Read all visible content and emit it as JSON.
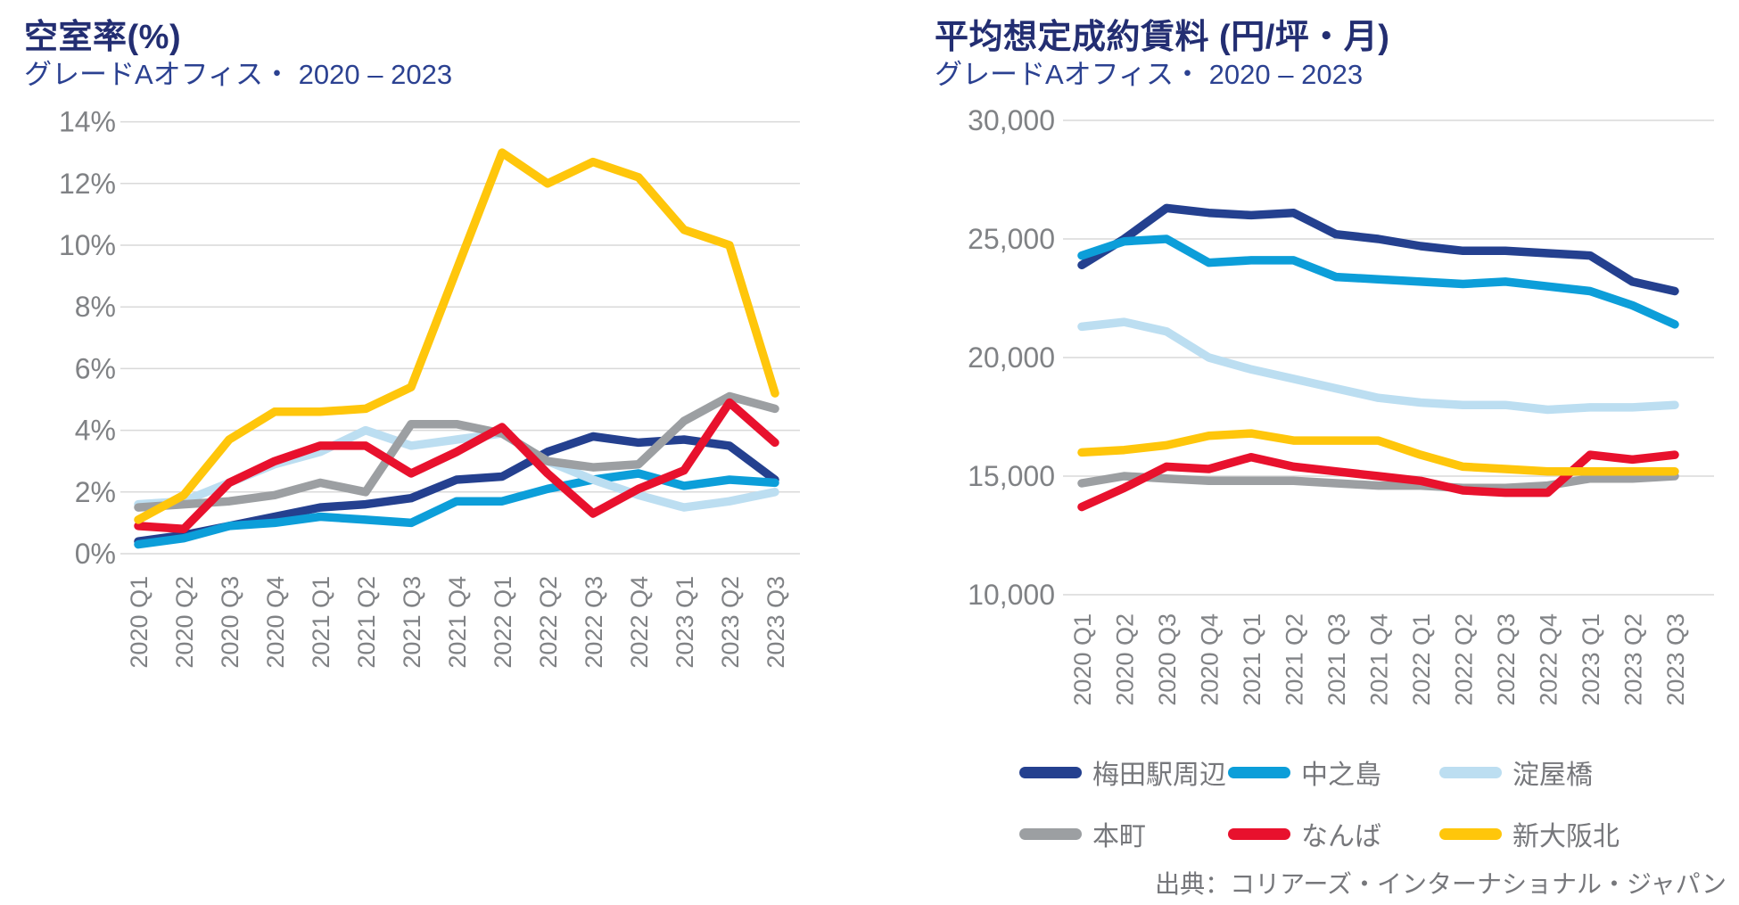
{
  "charts": {
    "vacancy": {
      "title": "空室率(%)",
      "subtitle": "グレードAオフィス・ 2020 – 2023"
    },
    "rent": {
      "title": "平均想定成約賃料 (円/坪・月)",
      "subtitle": "グレードAオフィス・ 2020 – 2023"
    }
  },
  "source": "出典：コリアーズ・インターナショナル・ジャパン",
  "colors": {
    "umeda_navy": "#24408F",
    "nakanoshima_cyan": "#0C9ED9",
    "yodoyabashi_lightblue": "#BCDEF1",
    "honmachi_gray": "#9C9FA2",
    "namba_red": "#E8112D",
    "shinosaka_yellow": "#FFC60B",
    "gridline": "#D9D9D9",
    "axis_text": "#808285",
    "title_navy": "#232E72"
  },
  "legend": {
    "items": [
      {
        "label": "梅田駅周辺",
        "color": "#24408F"
      },
      {
        "label": "中之島",
        "color": "#0C9ED9"
      },
      {
        "label": "淀屋橋",
        "color": "#BCDEF1"
      },
      {
        "label": "本町",
        "color": "#9C9FA2"
      },
      {
        "label": "なんば",
        "color": "#E8112D"
      },
      {
        "label": "新大阪北",
        "color": "#FFC60B"
      }
    ]
  },
  "chart_data": [
    {
      "type": "line",
      "title": "空室率(%)",
      "subtitle": "グレードAオフィス・ 2020 – 2023",
      "ylabel": "空室率 (%)",
      "ylim": [
        0,
        14
      ],
      "grid": true,
      "x_categories": [
        "2020 Q1",
        "2020 Q2",
        "2020 Q3",
        "2020 Q4",
        "2021 Q1",
        "2021 Q2",
        "2021 Q3",
        "2021 Q4",
        "2022 Q1",
        "2022 Q2",
        "2022 Q3",
        "2022 Q4",
        "2023 Q1",
        "2023 Q2",
        "2023 Q3"
      ],
      "y_ticks": [
        {
          "v": 14,
          "label": "14%"
        },
        {
          "v": 12,
          "label": "12%"
        },
        {
          "v": 10,
          "label": "10%"
        },
        {
          "v": 8,
          "label": "8%"
        },
        {
          "v": 6,
          "label": "6%"
        },
        {
          "v": 4,
          "label": "4%"
        },
        {
          "v": 2,
          "label": "2%"
        },
        {
          "v": 0,
          "label": "0%"
        }
      ],
      "series": [
        {
          "name": "梅田駅周辺",
          "color": "#24408F",
          "values": [
            0.4,
            0.6,
            0.9,
            1.2,
            1.5,
            1.6,
            1.8,
            2.4,
            2.5,
            3.3,
            3.8,
            3.6,
            3.7,
            3.5,
            2.4
          ]
        },
        {
          "name": "中之島",
          "color": "#0C9ED9",
          "values": [
            0.3,
            0.5,
            0.9,
            1.0,
            1.2,
            1.1,
            1.0,
            1.7,
            1.7,
            2.1,
            2.4,
            2.6,
            2.2,
            2.4,
            2.3
          ]
        },
        {
          "name": "淀屋橋",
          "color": "#BCDEF1",
          "values": [
            1.6,
            1.7,
            2.3,
            2.9,
            3.3,
            4.0,
            3.5,
            3.7,
            3.9,
            3.0,
            2.4,
            1.9,
            1.5,
            1.7,
            2.0
          ]
        },
        {
          "name": "本町",
          "color": "#9C9FA2",
          "values": [
            1.5,
            1.6,
            1.7,
            1.9,
            2.3,
            2.0,
            4.2,
            4.2,
            3.9,
            3.0,
            2.8,
            2.9,
            4.3,
            5.1,
            4.7
          ]
        },
        {
          "name": "なんば",
          "color": "#E8112D",
          "values": [
            0.9,
            0.8,
            2.3,
            3.0,
            3.5,
            3.5,
            2.6,
            3.3,
            4.1,
            2.6,
            1.3,
            2.1,
            2.7,
            4.9,
            3.6
          ]
        },
        {
          "name": "新大阪北",
          "color": "#FFC60B",
          "values": [
            1.1,
            1.9,
            3.7,
            4.6,
            4.6,
            4.7,
            5.4,
            9.2,
            13.0,
            12.0,
            12.7,
            12.2,
            10.5,
            10.0,
            5.2
          ]
        }
      ]
    },
    {
      "type": "line",
      "title": "平均想定成約賃料 (円/坪・月)",
      "subtitle": "グレードAオフィス・ 2020 – 2023",
      "ylabel": "平均想定成約賃料 (円/坪・月)",
      "ylim": [
        10000,
        30000
      ],
      "grid": true,
      "x_categories": [
        "2020 Q1",
        "2020 Q2",
        "2020 Q3",
        "2020 Q4",
        "2021 Q1",
        "2021 Q2",
        "2021 Q3",
        "2021 Q4",
        "2022 Q1",
        "2022 Q2",
        "2022 Q3",
        "2022 Q4",
        "2023 Q1",
        "2023 Q2",
        "2023 Q3"
      ],
      "y_ticks": [
        {
          "v": 30000,
          "label": "30,000"
        },
        {
          "v": 25000,
          "label": "25,000"
        },
        {
          "v": 20000,
          "label": "20,000"
        },
        {
          "v": 15000,
          "label": "15,000"
        },
        {
          "v": 10000,
          "label": "10,000"
        }
      ],
      "series": [
        {
          "name": "梅田駅周辺",
          "color": "#24408F",
          "values": [
            23900,
            25000,
            26300,
            26100,
            26000,
            26100,
            25200,
            25000,
            24700,
            24500,
            24500,
            24400,
            24300,
            23200,
            22800
          ]
        },
        {
          "name": "中之島",
          "color": "#0C9ED9",
          "values": [
            24300,
            24900,
            25000,
            24000,
            24100,
            24100,
            23400,
            23300,
            23200,
            23100,
            23200,
            23000,
            22800,
            22200,
            21400
          ]
        },
        {
          "name": "淀屋橋",
          "color": "#BCDEF1",
          "values": [
            21300,
            21500,
            21100,
            20000,
            19500,
            19100,
            18700,
            18300,
            18100,
            18000,
            18000,
            17800,
            17900,
            17900,
            18000
          ]
        },
        {
          "name": "本町",
          "color": "#9C9FA2",
          "values": [
            14700,
            15000,
            14900,
            14800,
            14800,
            14800,
            14700,
            14600,
            14600,
            14500,
            14500,
            14600,
            14900,
            14900,
            15000
          ]
        },
        {
          "name": "なんば",
          "color": "#E8112D",
          "values": [
            13700,
            14500,
            15400,
            15300,
            15800,
            15400,
            15200,
            15000,
            14800,
            14400,
            14300,
            14300,
            15900,
            15700,
            15900
          ]
        },
        {
          "name": "新大阪北",
          "color": "#FFC60B",
          "values": [
            16000,
            16100,
            16300,
            16700,
            16800,
            16500,
            16500,
            16500,
            15900,
            15400,
            15300,
            15200,
            15200,
            15200,
            15200
          ]
        }
      ]
    }
  ]
}
